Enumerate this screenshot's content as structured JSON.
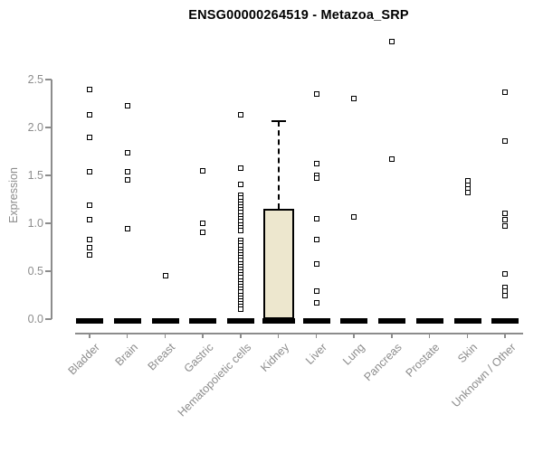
{
  "chart_data": {
    "type": "boxplot",
    "title": "ENSG00000264519 - Metazoa_SRP",
    "ylabel": "Expression",
    "ylim": [
      0,
      2.5
    ],
    "grid": false,
    "legend": null,
    "yticks": [
      {
        "label": "0.0",
        "value": 0.0
      },
      {
        "label": "0.5",
        "value": 0.5
      },
      {
        "label": "1.0",
        "value": 1.0
      },
      {
        "label": "1.5",
        "value": 1.5
      },
      {
        "label": "2.0",
        "value": 2.0
      },
      {
        "label": "2.5",
        "value": 2.5
      }
    ],
    "categories": [
      "Bladder",
      "Brain",
      "Breast",
      "Gastric",
      "Hematopoietic cells",
      "Kidney",
      "Liver",
      "Lung",
      "Pancreas",
      "Prostate",
      "Skin",
      "Unknown / Other"
    ],
    "groups": [
      {
        "name": "Bladder",
        "box": {
          "q1": 0,
          "median": 0,
          "q3": 0,
          "whisker_low": 0,
          "whisker_high": 0
        },
        "outliers": [
          2.4,
          2.13,
          1.9,
          1.54,
          1.19,
          1.04,
          0.83,
          0.75,
          0.67
        ]
      },
      {
        "name": "Brain",
        "box": {
          "q1": 0,
          "median": 0,
          "q3": 0,
          "whisker_low": 0,
          "whisker_high": 0
        },
        "outliers": [
          2.23,
          1.74,
          1.54,
          1.45,
          0.94
        ]
      },
      {
        "name": "Breast",
        "box": {
          "q1": 0,
          "median": 0,
          "q3": 0,
          "whisker_low": 0,
          "whisker_high": 0
        },
        "outliers": [
          0.45
        ]
      },
      {
        "name": "Gastric",
        "box": {
          "q1": 0,
          "median": 0,
          "q3": 0,
          "whisker_low": 0,
          "whisker_high": 0
        },
        "outliers": [
          1.55,
          1.0,
          0.91
        ]
      },
      {
        "name": "Hematopoietic cells",
        "box": {
          "q1": 0,
          "median": 0,
          "q3": 0,
          "whisker_low": 0,
          "whisker_high": 0
        },
        "outliers": [
          2.13,
          1.58,
          1.41,
          1.29,
          1.26,
          1.23,
          1.2,
          1.17,
          1.14,
          1.11,
          1.08,
          1.05,
          1.02,
          0.98,
          0.95,
          0.92,
          0.82,
          0.79,
          0.76,
          0.73,
          0.7,
          0.67,
          0.64,
          0.61,
          0.58,
          0.55,
          0.52,
          0.49,
          0.46,
          0.43,
          0.4,
          0.37,
          0.34,
          0.31,
          0.28,
          0.25,
          0.22,
          0.19,
          0.16,
          0.13,
          0.1
        ]
      },
      {
        "name": "Kidney",
        "box": {
          "q1": 0,
          "median": 0,
          "q3": 1.15,
          "whisker_low": 0,
          "whisker_high": 2.07
        },
        "outliers": []
      },
      {
        "name": "Liver",
        "box": {
          "q1": 0,
          "median": 0,
          "q3": 0,
          "whisker_low": 0,
          "whisker_high": 0
        },
        "outliers": [
          2.35,
          1.62,
          1.5,
          1.47,
          1.05,
          0.83,
          0.58,
          0.29,
          0.17
        ]
      },
      {
        "name": "Lung",
        "box": {
          "q1": 0,
          "median": 0,
          "q3": 0,
          "whisker_low": 0,
          "whisker_high": 0
        },
        "outliers": [
          2.3,
          1.07
        ]
      },
      {
        "name": "Pancreas",
        "box": {
          "q1": 0,
          "median": 0,
          "q3": 0,
          "whisker_low": 0,
          "whisker_high": 0
        },
        "outliers": [
          2.9,
          1.67
        ]
      },
      {
        "name": "Prostate",
        "box": {
          "q1": 0,
          "median": 0,
          "q3": 0,
          "whisker_low": 0,
          "whisker_high": 0
        },
        "outliers": []
      },
      {
        "name": "Skin",
        "box": {
          "q1": 0,
          "median": 0,
          "q3": 0,
          "whisker_low": 0,
          "whisker_high": 0
        },
        "outliers": [
          1.44,
          1.4,
          1.36,
          1.32
        ]
      },
      {
        "name": "Unknown / Other",
        "box": {
          "q1": 0,
          "median": 0,
          "q3": 0,
          "whisker_low": 0,
          "whisker_high": 0
        },
        "outliers": [
          2.37,
          1.86,
          1.1,
          1.04,
          0.97,
          0.47,
          0.33,
          0.29,
          0.25
        ]
      }
    ],
    "colors": {
      "box_fill": "#EDE7CE",
      "box_border": "#000000",
      "marker": "#000000",
      "flat_box": "#000000",
      "axis": "#8c8c8c",
      "title": "#000000"
    }
  }
}
